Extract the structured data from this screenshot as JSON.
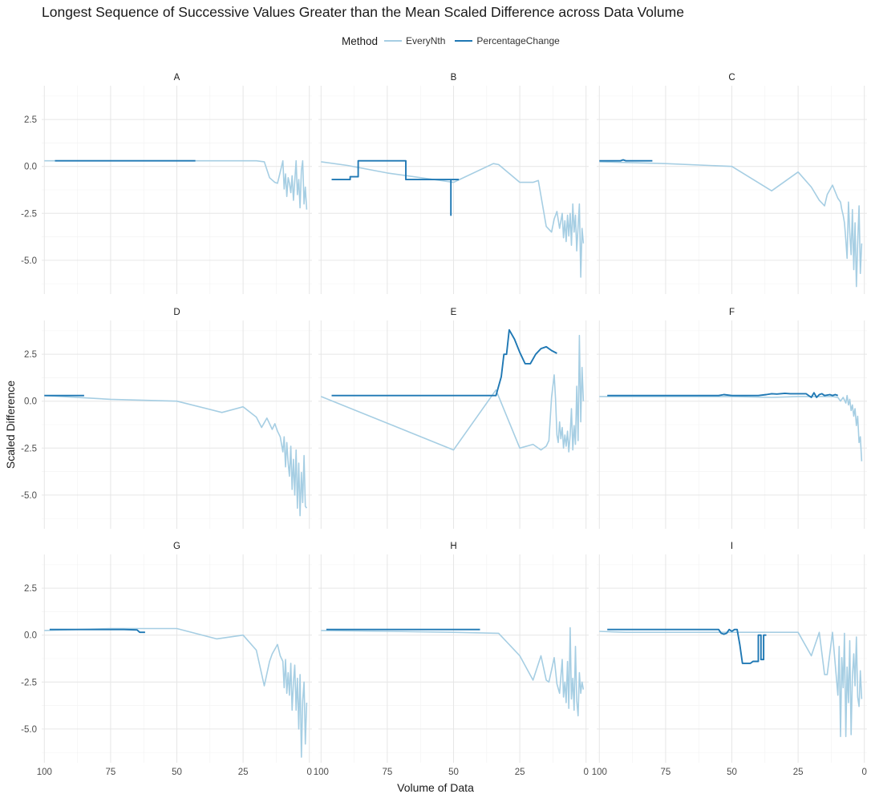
{
  "chart_data": {
    "type": "line",
    "title": "Longest Sequence of Successive Values Greater than the Mean Scaled Difference across Data Volume",
    "xlabel": "Volume of Data",
    "ylabel": "Scaled Difference",
    "xlim": [
      101,
      -1
    ],
    "ylim": [
      -6.8,
      4.3
    ],
    "x_reversed": true,
    "x_ticks": [
      100,
      75,
      50,
      25,
      0
    ],
    "y_ticks": [
      2.5,
      0.0,
      -2.5,
      -5.0
    ],
    "x_tick_labels": [
      "100",
      "75",
      "50",
      "25",
      "0"
    ],
    "y_tick_labels": [
      "2.5",
      "0.0",
      "-2.5",
      "-5.0"
    ],
    "grid": true,
    "legend": {
      "title": "Method",
      "position": "top",
      "entries": [
        {
          "name": "EveryNth",
          "color": "#a6cee3"
        },
        {
          "name": "PercentageChange",
          "color": "#1f78b4"
        }
      ]
    },
    "panels": [
      {
        "label": "A",
        "series": [
          {
            "name": "EveryNth",
            "x": [
              100,
              95,
              90,
              80,
              70,
              60,
              50,
              40,
              30,
              20,
              17,
              15,
              13,
              12,
              11,
              10,
              9.5,
              9,
              8.5,
              8,
              7.5,
              7,
              6.5,
              6,
              5.5,
              5,
              4.5,
              4,
              3.5,
              3,
              2.5,
              2,
              1.5,
              1
            ],
            "y": [
              0.3,
              0.3,
              0.3,
              0.3,
              0.3,
              0.3,
              0.3,
              0.3,
              0.3,
              0.3,
              0.25,
              -0.6,
              -0.85,
              -0.9,
              -0.3,
              0.3,
              -1.2,
              -0.4,
              -1.6,
              -0.6,
              -0.9,
              -1.4,
              -0.5,
              -1.8,
              -0.8,
              0.3,
              -1.5,
              -0.7,
              -2.2,
              -0.2,
              0.3,
              -2.0,
              -1.1,
              -2.3
            ]
          },
          {
            "name": "PercentageChange",
            "x": [
              96,
              43
            ],
            "y": [
              0.3,
              0.3
            ]
          }
        ]
      },
      {
        "label": "B",
        "series": [
          {
            "name": "EveryNth",
            "x": [
              100,
              90,
              75,
              50,
              35,
              33,
              25,
              20,
              18,
              15,
              13,
              12,
              11,
              10,
              9,
              8.5,
              8,
              7.5,
              7,
              6.5,
              6,
              5.5,
              5,
              4.5,
              4,
              3.5,
              3,
              2.5,
              2,
              1.5,
              1
            ],
            "y": [
              0.25,
              0.05,
              -0.35,
              -0.85,
              0.15,
              0.1,
              -0.85,
              -0.85,
              -0.75,
              -3.2,
              -3.5,
              -2.8,
              -2.4,
              -3.3,
              -2.5,
              -3.8,
              -2.9,
              -4.0,
              -2.6,
              -3.7,
              -2.5,
              -4.2,
              -2.0,
              -3.5,
              -2.6,
              -4.5,
              -3.2,
              -2.0,
              -5.9,
              -3.3,
              -4.1
            ]
          },
          {
            "name": "PercentageChange",
            "x": [
              96,
              89,
              89,
              86,
              86,
              68,
              68,
              51,
              51,
              51,
              51,
              48
            ],
            "y": [
              -0.7,
              -0.7,
              -0.55,
              -0.55,
              0.3,
              0.3,
              -0.7,
              -0.7,
              -2.6,
              -2.6,
              -0.7,
              -0.7
            ]
          }
        ]
      },
      {
        "label": "C",
        "series": [
          {
            "name": "EveryNth",
            "x": [
              100,
              75,
              50,
              35,
              25,
              20,
              17,
              15,
              14,
              12,
              10,
              9,
              8.5,
              8,
              7.5,
              7,
              6.5,
              6,
              5.5,
              5,
              4.5,
              4,
              3.5,
              3,
              2.5,
              2,
              1.5,
              1
            ],
            "y": [
              0.25,
              0.15,
              0.0,
              -1.3,
              -0.3,
              -1.1,
              -1.8,
              -2.1,
              -1.5,
              -1.0,
              -1.7,
              -1.9,
              -2.3,
              -2.6,
              -3.0,
              -3.9,
              -4.9,
              -1.9,
              -3.5,
              -4.7,
              -2.3,
              -5.5,
              -3.0,
              -6.4,
              -4.1,
              -2.1,
              -5.7,
              -4.1
            ]
          },
          {
            "name": "PercentageChange",
            "x": [
              100,
              92,
              91,
              90,
              80
            ],
            "y": [
              0.3,
              0.3,
              0.35,
              0.3,
              0.3
            ]
          }
        ]
      },
      {
        "label": "D",
        "series": [
          {
            "name": "EveryNth",
            "x": [
              100,
              75,
              50,
              33,
              25,
              20,
              18,
              16,
              14,
              13,
              12,
              11,
              10,
              9.5,
              9,
              8.5,
              8,
              7.5,
              7,
              6.5,
              6,
              5.5,
              5,
              4.5,
              4,
              3.5,
              3,
              2.5,
              2,
              1.5,
              1
            ],
            "y": [
              0.3,
              0.1,
              0.0,
              -0.6,
              -0.3,
              -0.85,
              -1.4,
              -0.9,
              -1.5,
              -1.2,
              -1.6,
              -1.9,
              -2.7,
              -1.9,
              -3.5,
              -2.2,
              -3.3,
              -4.0,
              -2.4,
              -4.7,
              -3.1,
              -5.0,
              -2.6,
              -5.7,
              -3.3,
              -6.1,
              -3.8,
              -5.4,
              -2.9,
              -5.6,
              -5.7
            ]
          },
          {
            "name": "PercentageChange",
            "x": [
              100,
              85
            ],
            "y": [
              0.3,
              0.3
            ]
          }
        ]
      },
      {
        "label": "E",
        "series": [
          {
            "name": "EveryNth",
            "x": [
              100,
              50,
              34,
              25,
              20,
              17,
              15,
              14,
              13,
              12,
              11.5,
              11,
              10.5,
              10,
              9.5,
              9,
              8.5,
              8,
              7.5,
              7,
              6.5,
              6,
              5.5,
              5,
              4.5,
              4,
              3.5,
              3,
              2.5,
              2,
              1.5,
              1
            ],
            "y": [
              0.25,
              -2.6,
              0.6,
              -2.5,
              -2.3,
              -2.6,
              -2.4,
              -2.1,
              0.2,
              1.4,
              0.1,
              -1.8,
              -2.2,
              -1.1,
              -2.0,
              -1.4,
              -2.5,
              -1.8,
              -2.4,
              -1.6,
              -2.7,
              -1.8,
              -0.4,
              -2.6,
              -1.3,
              -2.3,
              0.8,
              -2.1,
              3.5,
              -1.1,
              1.8,
              0.0
            ]
          },
          {
            "name": "PercentageChange",
            "x": [
              96,
              34,
              32,
              31,
              30,
              29,
              29,
              27,
              25,
              23,
              21,
              19,
              17,
              15,
              13,
              11
            ],
            "y": [
              0.3,
              0.3,
              1.3,
              2.5,
              2.5,
              3.8,
              3.8,
              3.3,
              2.6,
              2.0,
              2.0,
              2.5,
              2.8,
              2.9,
              2.7,
              2.55
            ]
          }
        ]
      },
      {
        "label": "F",
        "series": [
          {
            "name": "EveryNth",
            "x": [
              100,
              75,
              50,
              35,
              25,
              15,
              12,
              10,
              9,
              8,
              7,
              6.5,
              6,
              5.5,
              5,
              4.5,
              4,
              3.5,
              3,
              2.5,
              2,
              1.5,
              1
            ],
            "y": [
              0.25,
              0.25,
              0.25,
              0.2,
              0.25,
              0.25,
              0.25,
              0.2,
              0.0,
              0.2,
              -0.1,
              0.3,
              -0.2,
              0.1,
              -0.5,
              -0.2,
              -0.8,
              -0.4,
              -1.3,
              -0.8,
              -2.2,
              -1.9,
              -3.2
            ]
          },
          {
            "name": "PercentageChange",
            "x": [
              97,
              60,
              55,
              53,
              50,
              45,
              40,
              37,
              35,
              33,
              30,
              28,
              25,
              22,
              20,
              19,
              18,
              17,
              16,
              15,
              13,
              12,
              11,
              10
            ],
            "y": [
              0.3,
              0.3,
              0.3,
              0.35,
              0.3,
              0.3,
              0.3,
              0.35,
              0.4,
              0.38,
              0.42,
              0.4,
              0.4,
              0.4,
              0.2,
              0.45,
              0.2,
              0.35,
              0.4,
              0.3,
              0.35,
              0.3,
              0.35,
              0.3
            ]
          }
        ]
      },
      {
        "label": "G",
        "series": [
          {
            "name": "EveryNth",
            "x": [
              100,
              75,
              50,
              35,
              25,
              20,
              17,
              15,
              14,
              12,
              11,
              10,
              9.5,
              9,
              8.5,
              8,
              7.5,
              7,
              6.5,
              6,
              5.5,
              5,
              4.5,
              4,
              3.5,
              3,
              2.5,
              2,
              1.5,
              1
            ],
            "y": [
              0.25,
              0.35,
              0.35,
              -0.2,
              0.0,
              -0.8,
              -2.7,
              -1.4,
              -1.0,
              -0.5,
              -1.1,
              -1.4,
              -2.8,
              -1.3,
              -3.1,
              -2.0,
              -3.2,
              -1.5,
              -4.0,
              -2.5,
              -1.6,
              -4.0,
              -2.3,
              -5.0,
              -2.1,
              -6.5,
              -3.5,
              -2.5,
              -5.8,
              -3.6
            ]
          },
          {
            "name": "PercentageChange",
            "x": [
              98,
              70,
              65,
              64,
              62
            ],
            "y": [
              0.3,
              0.3,
              0.28,
              0.15,
              0.15
            ]
          }
        ]
      },
      {
        "label": "H",
        "series": [
          {
            "name": "EveryNth",
            "x": [
              100,
              75,
              50,
              33,
              25,
              20,
              17,
              15,
              14,
              12,
              11,
              10,
              9,
              8.5,
              8,
              7.5,
              7,
              6.5,
              6,
              5.5,
              5,
              4.5,
              4,
              3.5,
              3,
              2.5,
              2,
              1.5,
              1
            ],
            "y": [
              0.25,
              0.2,
              0.15,
              0.1,
              -1.1,
              -2.4,
              -1.1,
              -2.4,
              -2.5,
              -1.2,
              -2.6,
              -3.1,
              -1.3,
              -3.3,
              -2.5,
              -3.6,
              -1.4,
              -3.9,
              0.4,
              -3.4,
              -2.3,
              -4.0,
              -0.6,
              -3.5,
              -4.3,
              -2.0,
              -3.1,
              -2.5,
              -2.9
            ]
          },
          {
            "name": "PercentageChange",
            "x": [
              98,
              40
            ],
            "y": [
              0.3,
              0.3
            ]
          }
        ]
      },
      {
        "label": "I",
        "series": [
          {
            "name": "EveryNth",
            "x": [
              100,
              90,
              75,
              50,
              33,
              25,
              20,
              17,
              15,
              14,
              12,
              10,
              9.5,
              9,
              8.5,
              8,
              7.5,
              7,
              6.5,
              6,
              5.5,
              5,
              4.5,
              4,
              3.5,
              3,
              2.5,
              2,
              1.5,
              1
            ],
            "y": [
              0.2,
              0.15,
              0.15,
              0.15,
              0.15,
              0.15,
              -1.1,
              0.15,
              -2.1,
              -2.1,
              0.15,
              -3.2,
              -0.6,
              -5.4,
              -1.2,
              -2.8,
              0.1,
              -5.4,
              -1.7,
              -3.6,
              -0.3,
              -5.3,
              -2.2,
              -1.0,
              -2.7,
              -0.1,
              -3.3,
              -3.8,
              -1.9,
              -3.4
            ]
          },
          {
            "name": "PercentageChange",
            "x": [
              97,
              70,
              55,
              54,
              53,
              52,
              51,
              50,
              49,
              48,
              47,
              46,
              45,
              43,
              42,
              41,
              40,
              40,
              39,
              39,
              38,
              38,
              37,
              37
            ],
            "y": [
              0.3,
              0.3,
              0.3,
              0.1,
              0.05,
              0.1,
              0.3,
              0.2,
              0.3,
              0.3,
              -0.5,
              -1.5,
              -1.5,
              -1.5,
              -1.4,
              -1.4,
              -1.4,
              0.0,
              0.0,
              -1.3,
              -1.3,
              0.0,
              0.0,
              0.0
            ]
          }
        ]
      }
    ]
  }
}
